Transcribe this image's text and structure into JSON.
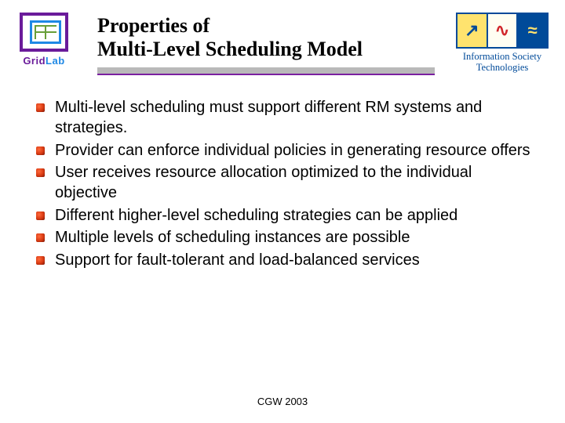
{
  "header": {
    "title_line1": "Properties of",
    "title_line2": "Multi-Level Scheduling Model",
    "left_logo": {
      "text_part1": "Grid",
      "text_part2": "Lab",
      "outer_border_color": "#6a1b9a",
      "inner_border_color": "#1e88e5",
      "grid_color": "#689f38"
    },
    "right_logo": {
      "cell1": "↗",
      "cell2": "∿",
      "cell3": "≈",
      "text_line1": "Information Society",
      "text_line2": "Technologies",
      "border_color": "#004a99"
    },
    "underline": {
      "bar_color": "#b9b9b9",
      "accent_color": "#7a1fa0"
    }
  },
  "bullets": [
    "Multi-level scheduling must support different RM systems and strategies.",
    "Provider can enforce individual policies in generating resource offers",
    "User receives resource allocation optimized to the individual objective",
    "Different higher-level scheduling strategies can be applied",
    "Multiple levels of scheduling instances are possible",
    "Support for fault-tolerant and load-balanced services"
  ],
  "footer": "CGW 2003",
  "typography": {
    "title_fontsize_pt": 20,
    "body_fontsize_pt": 15,
    "footer_fontsize_pt": 10,
    "title_font": "Times New Roman",
    "body_font": "Arial"
  },
  "colors": {
    "background": "#ffffff",
    "text": "#000000",
    "bullet_glyph": "#d83a12"
  }
}
